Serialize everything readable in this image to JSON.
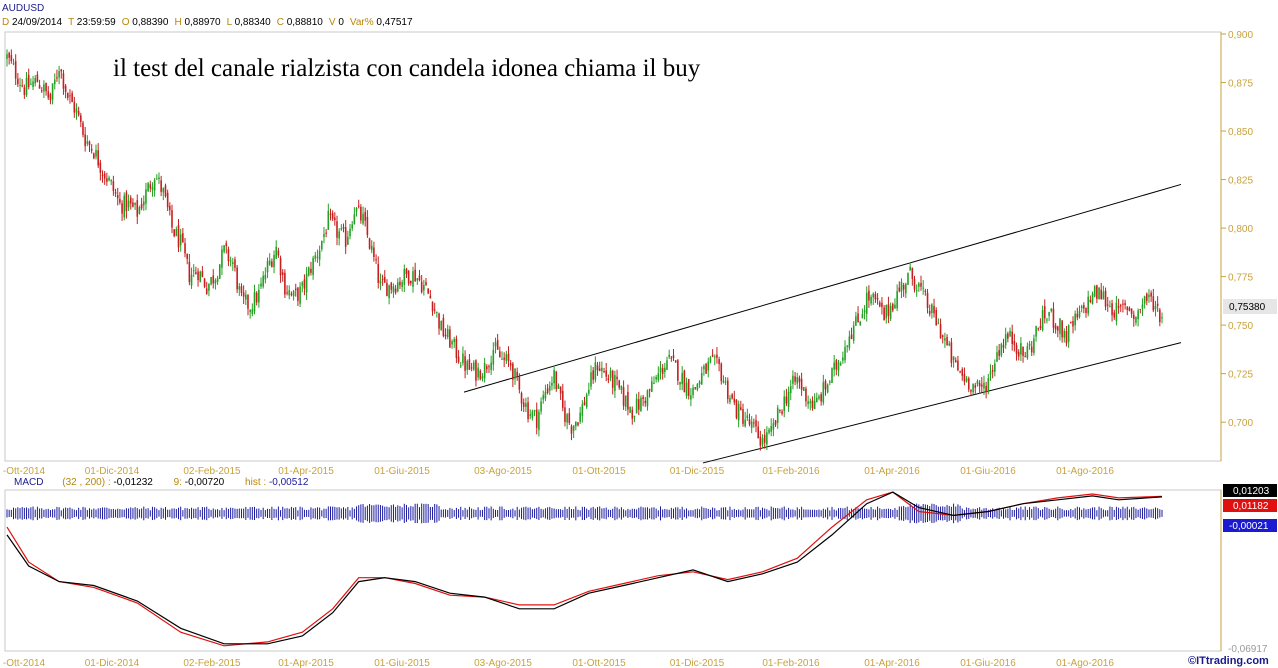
{
  "header": {
    "symbol": "AUDUSD",
    "items": [
      {
        "k": "D",
        "v": "24/09/2014"
      },
      {
        "k": "T",
        "v": "23:59:59"
      },
      {
        "k": "O",
        "v": "0,88390"
      },
      {
        "k": "H",
        "v": "0,88970"
      },
      {
        "k": "L",
        "v": "0,88340"
      },
      {
        "k": "C",
        "v": "0,88810"
      },
      {
        "k": "V",
        "v": "0"
      },
      {
        "k": "Var%",
        "v": "0,47517"
      }
    ]
  },
  "macd_header": {
    "label": "MACD",
    "params": "(32 , 200) :",
    "macd_value": "-0,01232",
    "signal_label": "9:",
    "signal_value": "-0,00720",
    "hist_label": "hist :",
    "hist_value": "-0,00512"
  },
  "annotation": "il test del canale rialzista con candela idonea chiama il buy",
  "watermark": "©ITtrading.com",
  "last_price": "0,75380",
  "macd_boxes": {
    "macd": "0,01203",
    "signal": "0,01182",
    "hist": "-0,00021",
    "bottom": "-0,06917"
  },
  "colors": {
    "up": "#22a022",
    "down": "#c81e1e",
    "axis": "#c8a23c",
    "macd_line": "#000000",
    "signal_line": "#e01010",
    "hist": "#1a1aa0"
  },
  "chart_data": {
    "type": "candlestick",
    "price_axis": {
      "ylim": [
        0.68,
        0.9
      ],
      "ticks": [
        "0,900",
        "0,875",
        "0,850",
        "0,825",
        "0,800",
        "0,775",
        "0,750",
        "0,725",
        "0,700"
      ]
    },
    "date_ticks": [
      "-Ott-2014",
      "01-Dic-2014",
      "02-Feb-2015",
      "01-Apr-2015",
      "01-Giu-2015",
      "03-Ago-2015",
      "01-Ott-2015",
      "01-Dic-2015",
      "01-Feb-2016",
      "01-Apr-2016",
      "01-Giu-2016",
      "01-Ago-2016"
    ],
    "bottom_date_ticks": [
      "-Ott-2014",
      "01-Dic-2014",
      "02-Feb-2015",
      "01-Apr-2015",
      "01-Giu-2015",
      "03-Ago-2015",
      "01-Ott-2015",
      "01-Dic-2015",
      "01-Feb-2016",
      "01-Apr-2016",
      "01-Giu-2016",
      "01-Ago-2016"
    ],
    "close_path": [
      [
        0,
        0.888
      ],
      [
        8,
        0.872
      ],
      [
        14,
        0.876
      ],
      [
        20,
        0.866
      ],
      [
        24,
        0.884
      ],
      [
        28,
        0.868
      ],
      [
        32,
        0.86
      ],
      [
        36,
        0.846
      ],
      [
        40,
        0.84
      ],
      [
        44,
        0.83
      ],
      [
        48,
        0.822
      ],
      [
        52,
        0.812
      ],
      [
        56,
        0.812
      ],
      [
        60,
        0.808
      ],
      [
        64,
        0.818
      ],
      [
        68,
        0.828
      ],
      [
        72,
        0.818
      ],
      [
        76,
        0.8
      ],
      [
        80,
        0.792
      ],
      [
        84,
        0.776
      ],
      [
        88,
        0.778
      ],
      [
        92,
        0.77
      ],
      [
        96,
        0.776
      ],
      [
        100,
        0.788
      ],
      [
        104,
        0.782
      ],
      [
        108,
        0.762
      ],
      [
        112,
        0.76
      ],
      [
        116,
        0.766
      ],
      [
        120,
        0.78
      ],
      [
        124,
        0.79
      ],
      [
        128,
        0.77
      ],
      [
        132,
        0.764
      ],
      [
        136,
        0.768
      ],
      [
        140,
        0.78
      ],
      [
        144,
        0.79
      ],
      [
        148,
        0.804
      ],
      [
        152,
        0.798
      ],
      [
        156,
        0.794
      ],
      [
        160,
        0.81
      ],
      [
        164,
        0.804
      ],
      [
        168,
        0.788
      ],
      [
        172,
        0.77
      ],
      [
        176,
        0.77
      ],
      [
        180,
        0.772
      ],
      [
        184,
        0.776
      ],
      [
        188,
        0.776
      ],
      [
        192,
        0.77
      ],
      [
        196,
        0.762
      ],
      [
        200,
        0.748
      ],
      [
        204,
        0.742
      ],
      [
        208,
        0.734
      ],
      [
        212,
        0.728
      ],
      [
        216,
        0.726
      ],
      [
        220,
        0.728
      ],
      [
        224,
        0.738
      ],
      [
        228,
        0.732
      ],
      [
        232,
        0.73
      ],
      [
        236,
        0.716
      ],
      [
        240,
        0.706
      ],
      [
        244,
        0.702
      ],
      [
        248,
        0.716
      ],
      [
        252,
        0.724
      ],
      [
        256,
        0.706
      ],
      [
        260,
        0.698
      ],
      [
        264,
        0.704
      ],
      [
        268,
        0.718
      ],
      [
        272,
        0.73
      ],
      [
        276,
        0.724
      ],
      [
        280,
        0.72
      ],
      [
        284,
        0.712
      ],
      [
        288,
        0.706
      ],
      [
        292,
        0.71
      ],
      [
        296,
        0.716
      ],
      [
        300,
        0.724
      ],
      [
        304,
        0.732
      ],
      [
        308,
        0.728
      ],
      [
        312,
        0.72
      ],
      [
        316,
        0.716
      ],
      [
        320,
        0.724
      ],
      [
        324,
        0.73
      ],
      [
        328,
        0.728
      ],
      [
        332,
        0.716
      ],
      [
        336,
        0.706
      ],
      [
        340,
        0.702
      ],
      [
        344,
        0.696
      ],
      [
        348,
        0.69
      ],
      [
        352,
        0.694
      ],
      [
        356,
        0.706
      ],
      [
        360,
        0.716
      ],
      [
        364,
        0.722
      ],
      [
        368,
        0.714
      ],
      [
        372,
        0.708
      ],
      [
        376,
        0.716
      ],
      [
        380,
        0.724
      ],
      [
        384,
        0.734
      ],
      [
        388,
        0.746
      ],
      [
        392,
        0.752
      ],
      [
        396,
        0.764
      ],
      [
        400,
        0.762
      ],
      [
        404,
        0.754
      ],
      [
        408,
        0.762
      ],
      [
        412,
        0.77
      ],
      [
        416,
        0.776
      ],
      [
        420,
        0.77
      ],
      [
        424,
        0.76
      ],
      [
        428,
        0.752
      ],
      [
        432,
        0.742
      ],
      [
        436,
        0.73
      ],
      [
        440,
        0.724
      ],
      [
        444,
        0.72
      ],
      [
        448,
        0.716
      ],
      [
        452,
        0.722
      ],
      [
        456,
        0.736
      ],
      [
        460,
        0.744
      ],
      [
        464,
        0.742
      ],
      [
        468,
        0.734
      ],
      [
        472,
        0.74
      ],
      [
        476,
        0.752
      ],
      [
        480,
        0.756
      ],
      [
        484,
        0.75
      ],
      [
        488,
        0.744
      ],
      [
        492,
        0.752
      ],
      [
        496,
        0.758
      ],
      [
        500,
        0.766
      ],
      [
        504,
        0.766
      ],
      [
        508,
        0.76
      ],
      [
        512,
        0.756
      ],
      [
        516,
        0.76
      ],
      [
        520,
        0.754
      ],
      [
        524,
        0.764
      ],
      [
        528,
        0.762
      ],
      [
        532,
        0.754
      ]
    ],
    "channel": {
      "upper": [
        [
          0.7155,
          0.7155
        ],
        [
          0.8225,
          0.8225
        ]
      ],
      "lower": [
        [
          0.679,
          0.679
        ],
        [
          0.741,
          0.741
        ]
      ]
    },
    "macd": {
      "ylim": [
        -0.06917,
        0.01203
      ],
      "macd_path": [
        0,
        -0.01,
        10,
        -0.026,
        24,
        -0.034,
        40,
        -0.036,
        60,
        -0.044,
        80,
        -0.058,
        100,
        -0.066,
        120,
        -0.066,
        136,
        -0.062,
        150,
        -0.05,
        162,
        -0.034,
        174,
        -0.032,
        188,
        -0.034,
        204,
        -0.04,
        220,
        -0.042,
        236,
        -0.048,
        252,
        -0.048,
        268,
        -0.04,
        284,
        -0.036,
        300,
        -0.032,
        316,
        -0.028,
        332,
        -0.034,
        348,
        -0.03,
        364,
        -0.024,
        380,
        -0.01,
        396,
        0.006,
        408,
        0.012,
        420,
        0.004,
        436,
        0.0,
        452,
        0.002,
        468,
        0.006,
        484,
        0.008,
        500,
        0.01,
        512,
        0.008,
        532,
        0.0095
      ],
      "signal_path": [
        0,
        -0.006,
        10,
        -0.024,
        24,
        -0.034,
        40,
        -0.037,
        60,
        -0.045,
        80,
        -0.06,
        100,
        -0.067,
        120,
        -0.065,
        136,
        -0.06,
        150,
        -0.048,
        162,
        -0.032,
        174,
        -0.032,
        188,
        -0.035,
        204,
        -0.041,
        220,
        -0.042,
        236,
        -0.046,
        252,
        -0.046,
        268,
        -0.039,
        284,
        -0.035,
        300,
        -0.031,
        316,
        -0.029,
        332,
        -0.033,
        348,
        -0.029,
        364,
        -0.022,
        380,
        -0.006,
        396,
        0.008,
        408,
        0.012,
        420,
        0.002,
        436,
        0.0,
        452,
        0.002,
        468,
        0.006,
        484,
        0.009,
        500,
        0.011,
        512,
        0.009,
        532,
        0.0098
      ]
    }
  }
}
